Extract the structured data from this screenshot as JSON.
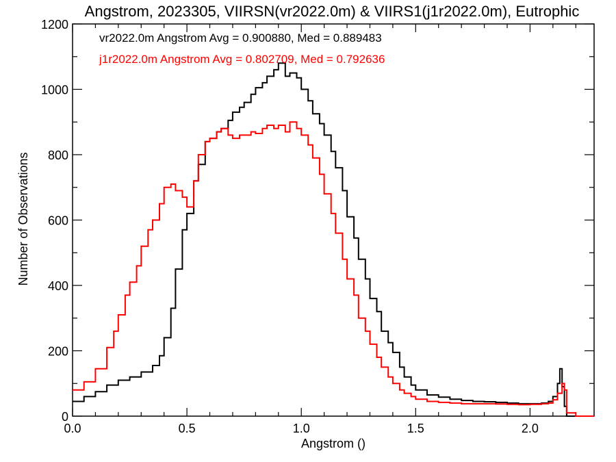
{
  "chart_data": {
    "type": "line",
    "title": "Angstrom, 2023305, VIIRSN(vr2022.0m) & VIIRS1(j1r2022.0m), Eutrophic",
    "xlabel": "Angstrom ()",
    "ylabel": "Number of Observations",
    "xlim": [
      0.0,
      2.28
    ],
    "ylim": [
      0,
      1200
    ],
    "xticks": [
      0.0,
      0.5,
      1.0,
      1.5,
      2.0
    ],
    "xtick_labels": [
      "0.0",
      "0.5",
      "1.0",
      "1.5",
      "2.0"
    ],
    "yticks": [
      0,
      200,
      400,
      600,
      800,
      1000,
      1200
    ],
    "ytick_labels": [
      "0",
      "200",
      "400",
      "600",
      "800",
      "1000",
      "1200"
    ],
    "grid": false,
    "legend_placement": "top-left",
    "series": [
      {
        "label": "vr2022.0m Angstrom Avg = 0.900880, Med = 0.889483",
        "color": "#000000",
        "x": [
          0.0,
          0.05,
          0.1,
          0.15,
          0.2,
          0.25,
          0.3,
          0.35,
          0.38,
          0.4,
          0.43,
          0.45,
          0.48,
          0.5,
          0.53,
          0.55,
          0.58,
          0.6,
          0.63,
          0.65,
          0.68,
          0.7,
          0.73,
          0.75,
          0.78,
          0.8,
          0.83,
          0.85,
          0.88,
          0.9,
          0.93,
          0.95,
          0.98,
          1.0,
          1.03,
          1.05,
          1.08,
          1.1,
          1.13,
          1.15,
          1.18,
          1.2,
          1.23,
          1.25,
          1.28,
          1.3,
          1.33,
          1.35,
          1.38,
          1.4,
          1.43,
          1.45,
          1.48,
          1.5,
          1.55,
          1.6,
          1.65,
          1.7,
          1.75,
          1.8,
          1.85,
          1.9,
          1.95,
          2.0,
          2.05,
          2.08,
          2.1,
          2.12,
          2.13,
          2.14,
          2.15,
          2.16,
          2.2,
          2.28
        ],
        "values": [
          45,
          60,
          75,
          95,
          110,
          120,
          135,
          155,
          185,
          240,
          330,
          450,
          570,
          620,
          720,
          770,
          840,
          850,
          870,
          880,
          905,
          930,
          945,
          960,
          985,
          1005,
          1020,
          1040,
          1060,
          1080,
          1040,
          1050,
          1035,
          1000,
          965,
          925,
          895,
          860,
          810,
          760,
          690,
          610,
          545,
          480,
          420,
          360,
          320,
          260,
          225,
          195,
          150,
          120,
          95,
          80,
          65,
          58,
          52,
          48,
          45,
          44,
          42,
          40,
          38,
          38,
          40,
          45,
          60,
          100,
          145,
          90,
          30,
          0,
          0,
          0
        ]
      },
      {
        "label": "j1r2022.0m Angstrom Avg = 0.802709, Med = 0.792636",
        "color": "#ff0000",
        "x": [
          0.0,
          0.05,
          0.1,
          0.15,
          0.18,
          0.2,
          0.23,
          0.25,
          0.28,
          0.3,
          0.33,
          0.35,
          0.38,
          0.4,
          0.43,
          0.45,
          0.48,
          0.5,
          0.53,
          0.55,
          0.58,
          0.6,
          0.63,
          0.65,
          0.68,
          0.7,
          0.73,
          0.75,
          0.78,
          0.8,
          0.83,
          0.85,
          0.88,
          0.9,
          0.93,
          0.95,
          0.98,
          1.0,
          1.03,
          1.05,
          1.08,
          1.1,
          1.13,
          1.15,
          1.18,
          1.2,
          1.23,
          1.25,
          1.28,
          1.3,
          1.33,
          1.35,
          1.38,
          1.4,
          1.43,
          1.45,
          1.48,
          1.5,
          1.55,
          1.6,
          1.65,
          1.7,
          1.75,
          1.8,
          1.85,
          1.9,
          1.95,
          2.0,
          2.05,
          2.08,
          2.1,
          2.12,
          2.14,
          2.15,
          2.16,
          2.2,
          2.28
        ],
        "values": [
          80,
          105,
          145,
          210,
          260,
          310,
          370,
          410,
          460,
          520,
          570,
          600,
          650,
          700,
          710,
          690,
          670,
          640,
          720,
          800,
          840,
          850,
          870,
          880,
          860,
          850,
          860,
          860,
          870,
          865,
          880,
          890,
          880,
          890,
          870,
          900,
          880,
          860,
          830,
          790,
          740,
          680,
          620,
          560,
          480,
          420,
          370,
          300,
          260,
          220,
          180,
          150,
          120,
          100,
          80,
          70,
          60,
          52,
          45,
          42,
          40,
          38,
          38,
          38,
          37,
          36,
          35,
          36,
          38,
          40,
          50,
          70,
          100,
          80,
          10,
          0,
          0
        ]
      }
    ]
  }
}
